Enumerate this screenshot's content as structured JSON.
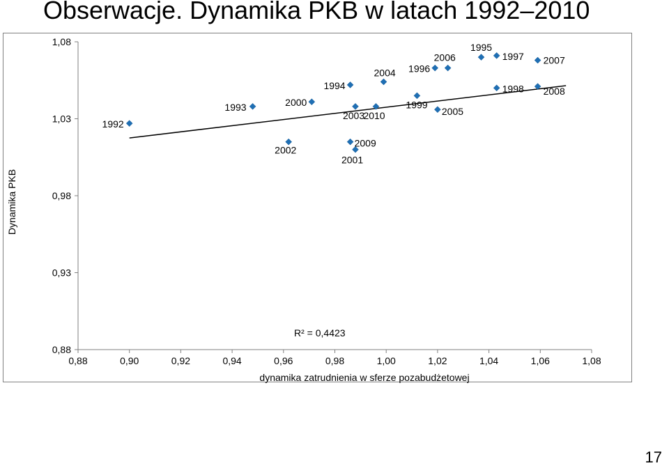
{
  "slide": {
    "title": "Obserwacje. Dynamika PKB w latach 1992–2010",
    "page_number": "17"
  },
  "chart_data": {
    "type": "scatter",
    "xlabel": "dynamika zatrudnienia w sferze pozabudżetowej",
    "ylabel": "Dynamika PKB",
    "xlim": [
      0.88,
      1.08
    ],
    "ylim": [
      0.88,
      1.08
    ],
    "x_ticks": [
      "0,88",
      "0,90",
      "0,92",
      "0,94",
      "0,96",
      "0,98",
      "1,00",
      "1,02",
      "1,04",
      "1,06",
      "1,08"
    ],
    "y_ticks": [
      "1,08",
      "1,03",
      "0,98",
      "0,93",
      "0,88"
    ],
    "y_tick_values": [
      1.08,
      1.03,
      0.98,
      0.93,
      0.88
    ],
    "grid": false,
    "legend": "none",
    "marker_color": "#1f6fb4",
    "trendline": {
      "type": "linear",
      "r2_label": "R² = 0,4423",
      "x_range": [
        0.9,
        1.07
      ],
      "y_at_start": 1.0175,
      "y_at_end": 1.0515
    },
    "points": [
      {
        "year": "1992",
        "x": 0.9,
        "y": 1.027
      },
      {
        "year": "1993",
        "x": 0.948,
        "y": 1.038
      },
      {
        "year": "1994",
        "x": 0.986,
        "y": 1.052
      },
      {
        "year": "1995",
        "x": 1.037,
        "y": 1.07
      },
      {
        "year": "1996",
        "x": 1.019,
        "y": 1.063
      },
      {
        "year": "1997",
        "x": 1.043,
        "y": 1.071
      },
      {
        "year": "1998",
        "x": 1.043,
        "y": 1.05
      },
      {
        "year": "1999",
        "x": 1.012,
        "y": 1.045
      },
      {
        "year": "2000",
        "x": 0.971,
        "y": 1.041
      },
      {
        "year": "2001",
        "x": 0.988,
        "y": 1.01
      },
      {
        "year": "2002",
        "x": 0.962,
        "y": 1.015
      },
      {
        "year": "2003",
        "x": 0.988,
        "y": 1.038
      },
      {
        "year": "2004",
        "x": 0.999,
        "y": 1.054
      },
      {
        "year": "2005",
        "x": 1.02,
        "y": 1.036
      },
      {
        "year": "2006",
        "x": 1.024,
        "y": 1.063
      },
      {
        "year": "2007",
        "x": 1.059,
        "y": 1.068
      },
      {
        "year": "2008",
        "x": 1.059,
        "y": 1.051
      },
      {
        "year": "2009",
        "x": 0.986,
        "y": 1.015
      },
      {
        "year": "2010",
        "x": 0.996,
        "y": 1.038
      }
    ]
  }
}
